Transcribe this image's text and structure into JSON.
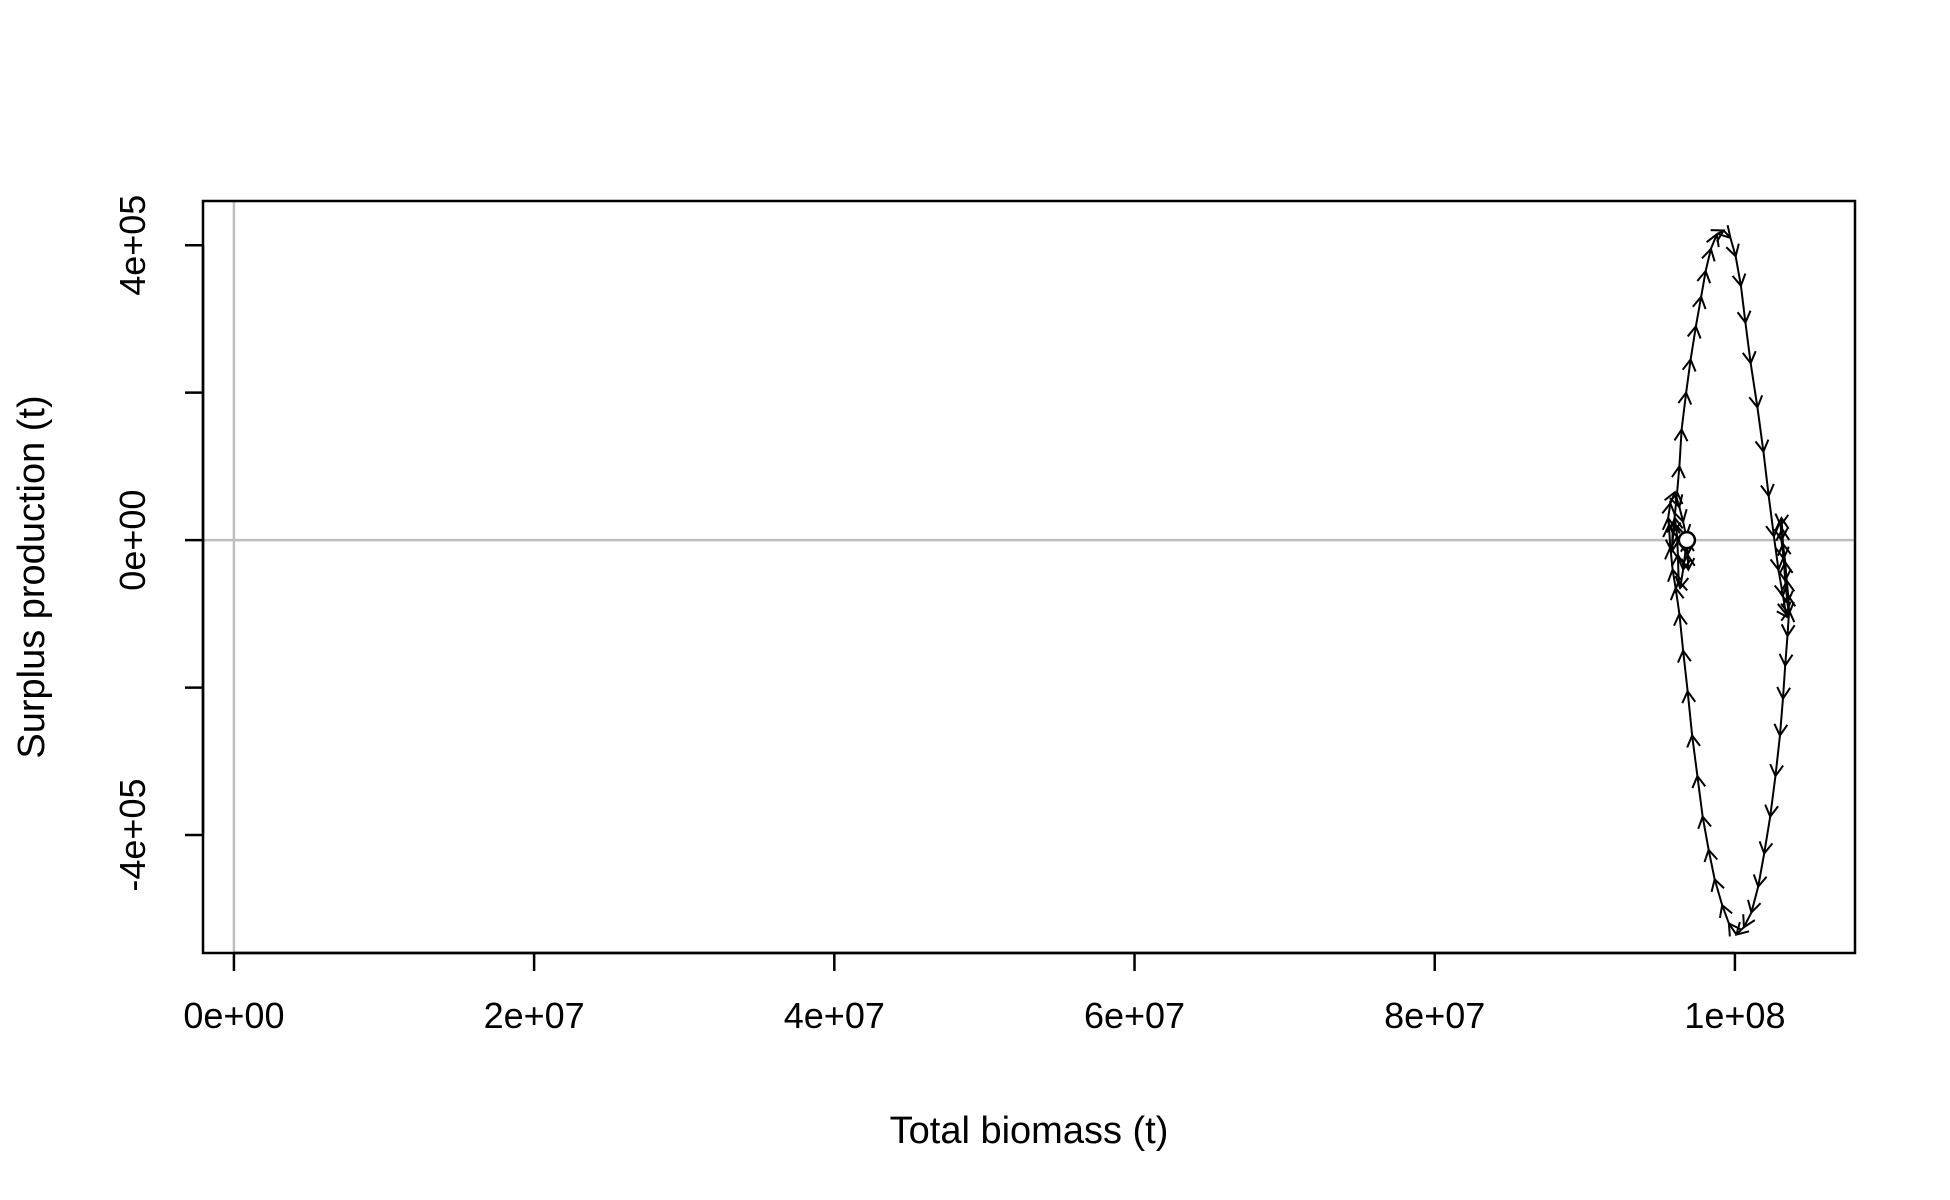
{
  "chart_data": {
    "type": "line",
    "title": "",
    "xlabel": "Total biomass (t)",
    "ylabel": "Surplus production (t)",
    "xlim": [
      -2060000,
      108000000
    ],
    "ylim": [
      -560000,
      460000
    ],
    "x_ticks": [
      {
        "value": 0,
        "label": "0e+00"
      },
      {
        "value": 20000000,
        "label": "2e+07"
      },
      {
        "value": 40000000,
        "label": "4e+07"
      },
      {
        "value": 60000000,
        "label": "6e+07"
      },
      {
        "value": 80000000,
        "label": "8e+07"
      },
      {
        "value": 100000000,
        "label": "1e+08"
      }
    ],
    "y_ticks": [
      {
        "value": -400000,
        "label": "-4e+05"
      },
      {
        "value": -200000,
        "label": ""
      },
      {
        "value": 0,
        "label": "0e+00"
      },
      {
        "value": 200000,
        "label": ""
      },
      {
        "value": 400000,
        "label": "4e+05"
      }
    ],
    "reference_lines": {
      "h": 0,
      "v": 0,
      "color": "#bebebe"
    },
    "grid": false,
    "line_color": "#000000",
    "series": [
      {
        "x": [
          96800000,
          96550000,
          96350000,
          96250000,
          96200000,
          96150000,
          96000000,
          95850000,
          95800000,
          95950000,
          96150000,
          96300000,
          96450000,
          96750000,
          97050000,
          97400000,
          97750000,
          98050000,
          98400000,
          98800000,
          99250000,
          99700000,
          100050000,
          100400000,
          100700000,
          101050000,
          101500000,
          101900000,
          102250000,
          102600000,
          102900000,
          103200000,
          103400000,
          103550000,
          103600000,
          103550000,
          103450000,
          103350000,
          103200000,
          103150000,
          103100000,
          103050000,
          103100000,
          103250000,
          103350000,
          103500000,
          103600000,
          103500000,
          103350000,
          103200000,
          103000000,
          102700000,
          102350000,
          101950000,
          101550000,
          101100000,
          100600000,
          100100000,
          99600000,
          99150000,
          98650000,
          98250000,
          97850000,
          97500000,
          97150000,
          96850000,
          96550000,
          96300000,
          96050000,
          95850000,
          95700000,
          95600000,
          95550000,
          95700000,
          96000000,
          96300000,
          96550000,
          96750000,
          96850000,
          96900000,
          96850000,
          96800000
        ],
        "y": [
          0,
          -40000,
          -65000,
          -55000,
          -20000,
          5000,
          30000,
          10000,
          -15000,
          25000,
          65000,
          100000,
          150000,
          200000,
          245000,
          290000,
          330000,
          365000,
          395000,
          415000,
          420000,
          410000,
          385000,
          345000,
          295000,
          240000,
          180000,
          120000,
          60000,
          5000,
          -40000,
          -75000,
          -100000,
          -105000,
          -95000,
          -75000,
          -55000,
          -30000,
          -5000,
          15000,
          30000,
          20000,
          0,
          -25000,
          -55000,
          -85000,
          -100000,
          -130000,
          -170000,
          -215000,
          -265000,
          -320000,
          -375000,
          -425000,
          -470000,
          -505000,
          -525000,
          -535000,
          -520000,
          -495000,
          -460000,
          -420000,
          -375000,
          -320000,
          -265000,
          -205000,
          -150000,
          -100000,
          -65000,
          -40000,
          -10000,
          20000,
          30000,
          50000,
          65000,
          45000,
          25000,
          5000,
          -20000,
          -40000,
          -20000,
          0
        ]
      }
    ],
    "start_point": {
      "x": 96800000,
      "y": 0
    }
  }
}
